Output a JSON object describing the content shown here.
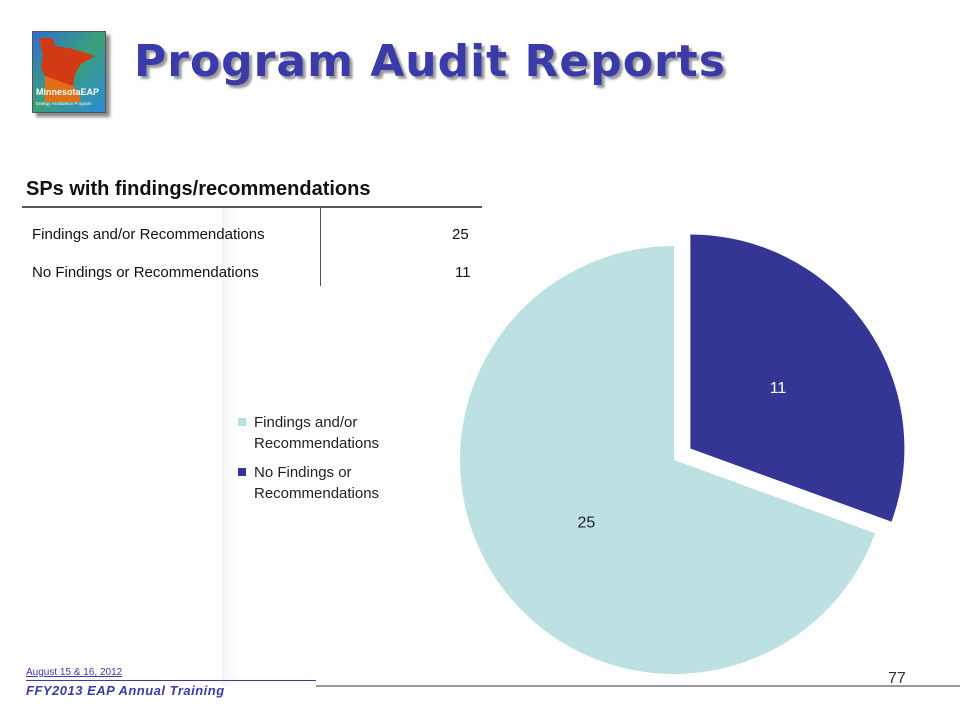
{
  "slide": {
    "title": "Program Audit Reports",
    "logo_text": "MinnesotaEAP",
    "logo_subtext": "Energy Assistance Program"
  },
  "table": {
    "title": "SPs with findings/recommendations",
    "rows": [
      {
        "label": "Findings and/or Recommendations",
        "value": "25"
      },
      {
        "label": "No Findings or Recommendations",
        "value": "11"
      }
    ]
  },
  "chart_data": {
    "type": "pie",
    "categories": [
      "Findings and/or Recommendations",
      "No Findings or Recommendations"
    ],
    "values": [
      25,
      11
    ],
    "colors": [
      "#bde0e3",
      "#353596"
    ],
    "data_labels": [
      "25",
      "11"
    ],
    "legend": [
      "Findings and/or Recommendations",
      "No Findings or Recommendations"
    ],
    "legend_placement": "left",
    "exploded": "No Findings or Recommendations",
    "start_angle_deg": 0,
    "title": ""
  },
  "footer": {
    "date": "August 15 & 16, 2012",
    "training": "FFY2013 EAP Annual Training",
    "page_number": "77"
  }
}
